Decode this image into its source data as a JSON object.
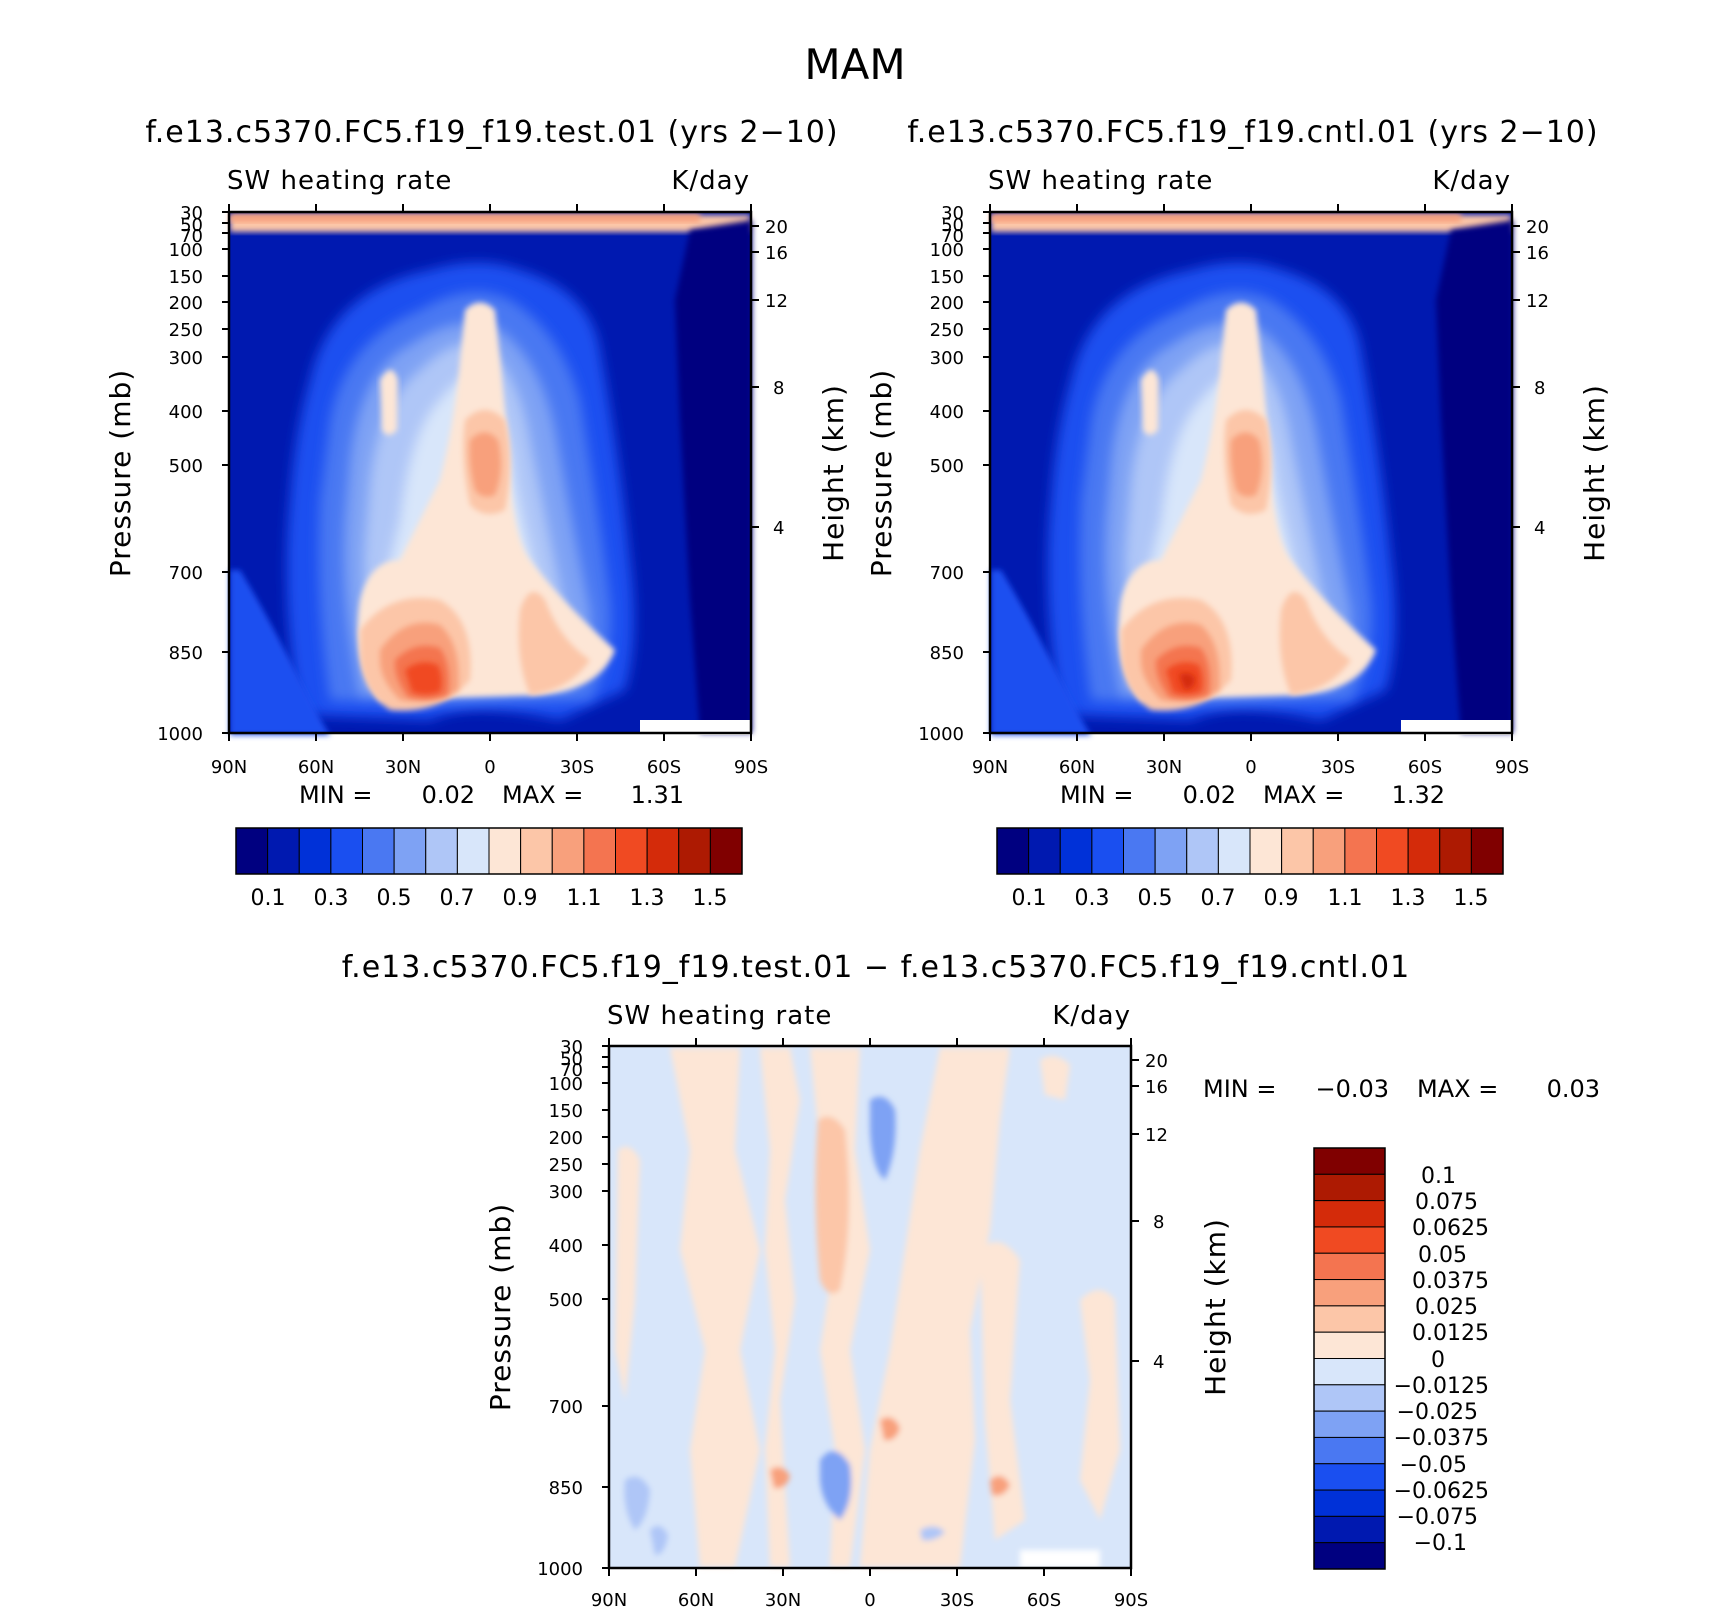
{
  "figure_title": "MAM",
  "chart_data": [
    {
      "type": "heatmap",
      "panel": "test",
      "title": "f.e13.c5370.FC5.f19_f19.test.01 (yrs 2−10)",
      "variable": "SW heating rate",
      "units": "K/day",
      "ylabel": "Pressure (mb)",
      "ylabel_right": "Height (km)",
      "x_ticks": [
        "90N",
        "60N",
        "30N",
        "0",
        "30S",
        "60S",
        "90S"
      ],
      "y_ticks": [
        "30",
        "50",
        "70",
        "100",
        "150",
        "200",
        "250",
        "300",
        "400",
        "500",
        "700",
        "850",
        "1000"
      ],
      "y_ticks_right": [
        "20",
        "16",
        "12",
        "8",
        "4"
      ],
      "min_label": "MIN =",
      "min_value": "0.02",
      "max_label": "MAX =",
      "max_value": "1.31",
      "colorbar_labels": [
        "0.1",
        "0.3",
        "0.5",
        "0.7",
        "0.9",
        "1.1",
        "1.3",
        "1.5"
      ],
      "levels": [
        0.1,
        0.2,
        0.3,
        0.4,
        0.5,
        0.6,
        0.7,
        0.8,
        0.9,
        1.0,
        1.1,
        1.2,
        1.3,
        1.4,
        1.5
      ]
    },
    {
      "type": "heatmap",
      "panel": "cntl",
      "title": "f.e13.c5370.FC5.f19_f19.cntl.01 (yrs 2−10)",
      "variable": "SW heating rate",
      "units": "K/day",
      "ylabel": "Pressure (mb)",
      "ylabel_right": "Height (km)",
      "x_ticks": [
        "90N",
        "60N",
        "30N",
        "0",
        "30S",
        "60S",
        "90S"
      ],
      "y_ticks": [
        "30",
        "50",
        "70",
        "100",
        "150",
        "200",
        "250",
        "300",
        "400",
        "500",
        "700",
        "850",
        "1000"
      ],
      "y_ticks_right": [
        "20",
        "16",
        "12",
        "8",
        "4"
      ],
      "min_label": "MIN =",
      "min_value": "0.02",
      "max_label": "MAX =",
      "max_value": "1.32",
      "colorbar_labels": [
        "0.1",
        "0.3",
        "0.5",
        "0.7",
        "0.9",
        "1.1",
        "1.3",
        "1.5"
      ],
      "levels": [
        0.1,
        0.2,
        0.3,
        0.4,
        0.5,
        0.6,
        0.7,
        0.8,
        0.9,
        1.0,
        1.1,
        1.2,
        1.3,
        1.4,
        1.5
      ]
    },
    {
      "type": "heatmap",
      "panel": "diff",
      "title": "f.e13.c5370.FC5.f19_f19.test.01 − f.e13.c5370.FC5.f19_f19.cntl.01",
      "variable": "SW heating rate",
      "units": "K/day",
      "ylabel": "Pressure (mb)",
      "ylabel_right": "Height (km)",
      "x_ticks": [
        "90N",
        "60N",
        "30N",
        "0",
        "30S",
        "60S",
        "90S"
      ],
      "y_ticks": [
        "30",
        "50",
        "70",
        "100",
        "150",
        "200",
        "250",
        "300",
        "400",
        "500",
        "700",
        "850",
        "1000"
      ],
      "y_ticks_right": [
        "20",
        "16",
        "12",
        "8",
        "4"
      ],
      "min_label": "MIN =",
      "min_value": "−0.03",
      "max_label": "MAX =",
      "max_value": "0.03",
      "colorbar_labels": [
        "0.1",
        "0.075",
        "0.0625",
        "0.05",
        "0.0375",
        "0.025",
        "0.0125",
        "0",
        "−0.0125",
        "−0.025",
        "−0.0375",
        "−0.05",
        "−0.0625",
        "−0.075",
        "−0.1"
      ]
    }
  ],
  "colors": {
    "abs_scale": [
      "#000080",
      "#0019b0",
      "#0031d8",
      "#1a4ff0",
      "#4a78f2",
      "#7ea2f4",
      "#afc6f7",
      "#d8e6fa",
      "#fde6d6",
      "#fcc6a8",
      "#f8a07c",
      "#f47450",
      "#f04a22",
      "#d42b0a",
      "#ad1a02",
      "#800000"
    ],
    "diff_scale": [
      "#800000",
      "#ad1a02",
      "#d42b0a",
      "#f04a22",
      "#f47450",
      "#f8a07c",
      "#fcc6a8",
      "#fde6d6",
      "#d8e6fa",
      "#afc6f7",
      "#7ea2f4",
      "#4a78f2",
      "#1a4ff0",
      "#0031d8",
      "#0019b0",
      "#000080"
    ]
  }
}
